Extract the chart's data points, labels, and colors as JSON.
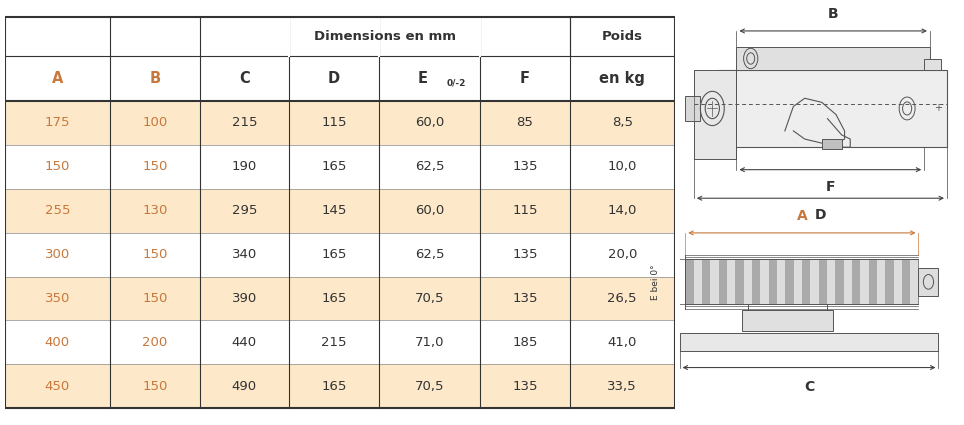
{
  "rows": [
    [
      "175",
      "100",
      "215",
      "115",
      "60,0",
      "85",
      "8,5"
    ],
    [
      "150",
      "150",
      "190",
      "165",
      "62,5",
      "135",
      "10,0"
    ],
    [
      "255",
      "130",
      "295",
      "145",
      "60,0",
      "115",
      "14,0"
    ],
    [
      "300",
      "150",
      "340",
      "165",
      "62,5",
      "135",
      "20,0"
    ],
    [
      "350",
      "150",
      "390",
      "165",
      "70,5",
      "135",
      "26,5"
    ],
    [
      "400",
      "200",
      "440",
      "215",
      "71,0",
      "185",
      "41,0"
    ],
    [
      "450",
      "150",
      "490",
      "165",
      "70,5",
      "135",
      "33,5"
    ]
  ],
  "row_bg_colors": [
    "#fde9c9",
    "#ffffff",
    "#fde9c9",
    "#ffffff",
    "#fde9c9",
    "#ffffff",
    "#fde9c9"
  ],
  "orange_color": "#c8783c",
  "black_color": "#333333",
  "dim_header": "Dimensions en mm",
  "poids_header1": "Poids",
  "poids_header2": "en kg"
}
